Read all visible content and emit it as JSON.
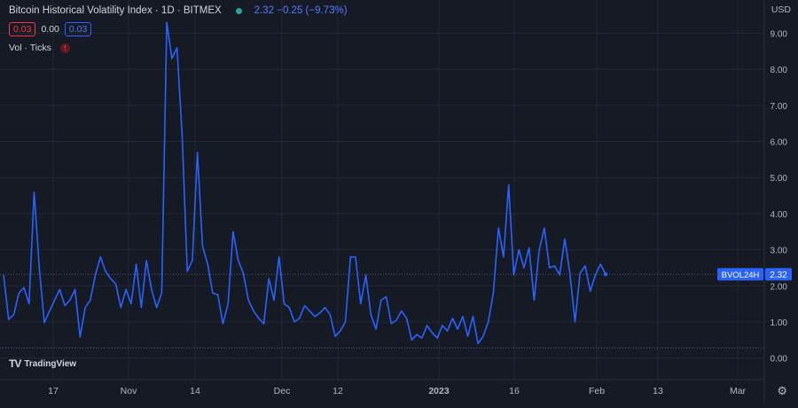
{
  "header": {
    "title": "Bitcoin Historical Volatility Index · 1D · BITMEX",
    "values": "2.32  −0.25 (−9.73%)"
  },
  "indicator_values": {
    "red_box": "0.03",
    "plain": "0.00",
    "blue_box": "0.03"
  },
  "volume_label": "Vol · Ticks",
  "currency": "USD",
  "price_tag": {
    "label": "BVOL24H",
    "value": "2.32"
  },
  "logo_text": "TradingView",
  "colors": {
    "background": "#161a25",
    "line": "#2962ff",
    "grid": "#232733",
    "axis_text": "#b2b5be"
  },
  "chart_data": {
    "type": "line",
    "title": "Bitcoin Historical Volatility Index · 1D · BITMEX",
    "ylim": [
      -0.6,
      9.8
    ],
    "y_ticks": [
      "0.00",
      "1.00",
      "2.00",
      "3.00",
      "4.00",
      "5.00",
      "6.00",
      "7.00",
      "8.00",
      "9.00"
    ],
    "x_ticks": [
      "17",
      "Nov",
      "14",
      "Dec",
      "12",
      "2023",
      "16",
      "Feb",
      "13",
      "Mar"
    ],
    "grid": true,
    "series": [
      {
        "name": "BVOL24H",
        "x_start": 0,
        "values": [
          2.3,
          1.07,
          1.2,
          1.8,
          1.95,
          1.5,
          4.6,
          2.5,
          0.98,
          1.3,
          1.6,
          1.9,
          1.45,
          1.6,
          1.9,
          0.58,
          1.4,
          1.6,
          2.3,
          2.8,
          2.4,
          2.2,
          2.05,
          1.4,
          1.9,
          1.5,
          2.6,
          1.4,
          2.7,
          1.9,
          1.4,
          1.8,
          9.3,
          8.3,
          8.6,
          6.2,
          2.4,
          2.7,
          5.7,
          3.1,
          2.6,
          1.8,
          1.75,
          0.95,
          1.5,
          3.5,
          2.7,
          2.35,
          1.6,
          1.3,
          1.1,
          0.95,
          2.2,
          1.6,
          2.8,
          1.5,
          1.4,
          1.0,
          1.1,
          1.45,
          1.3,
          1.15,
          1.25,
          1.4,
          1.2,
          0.6,
          0.75,
          1.0,
          2.8,
          2.8,
          1.5,
          2.3,
          1.2,
          0.8,
          1.6,
          1.7,
          0.95,
          1.05,
          1.3,
          1.1,
          0.5,
          0.65,
          0.55,
          0.9,
          0.7,
          0.55,
          0.9,
          0.75,
          1.1,
          0.8,
          1.15,
          0.6,
          1.15,
          0.4,
          0.6,
          1.0,
          1.8,
          3.6,
          2.8,
          4.8,
          2.3,
          3.0,
          2.5,
          3.05,
          1.6,
          3.0,
          3.6,
          2.5,
          2.55,
          2.3,
          3.3,
          2.35,
          1.0,
          2.35,
          2.55,
          1.85,
          2.3,
          2.6,
          2.32
        ]
      }
    ],
    "reference_lines": [
      {
        "name": "last-price-line",
        "y": 2.32
      },
      {
        "name": "baseline-line",
        "y": 0.28
      }
    ]
  }
}
